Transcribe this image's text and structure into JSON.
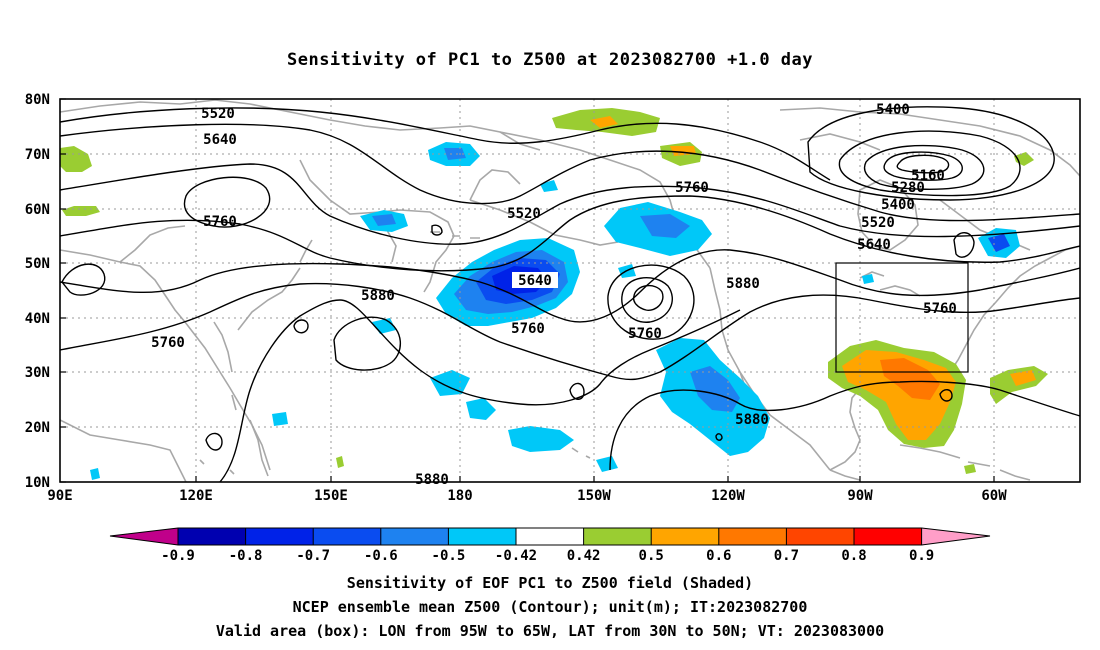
{
  "title": "Sensitivity of PC1 to Z500 at 2023082700 +1.0 day",
  "map": {
    "lat_labels": [
      "80N",
      "70N",
      "60N",
      "50N",
      "40N",
      "30N",
      "20N",
      "10N"
    ],
    "lon_labels": [
      "90E",
      "120E",
      "150E",
      "180",
      "150W",
      "120W",
      "90W",
      "60W"
    ],
    "contour_labels": [
      {
        "text": "5520"
      },
      {
        "text": "5640"
      },
      {
        "text": "5760"
      },
      {
        "text": "5520"
      },
      {
        "text": "5760"
      },
      {
        "text": "5880"
      },
      {
        "text": "5640"
      },
      {
        "text": "5760"
      },
      {
        "text": "5760"
      },
      {
        "text": "5760"
      },
      {
        "text": "5880"
      },
      {
        "text": "5880"
      },
      {
        "text": "5880"
      },
      {
        "text": "5400"
      },
      {
        "text": "5160"
      },
      {
        "text": "5280"
      },
      {
        "text": "5400"
      },
      {
        "text": "5520"
      },
      {
        "text": "5640"
      },
      {
        "text": "5760"
      }
    ],
    "valid_box": {
      "lon_from": "95W",
      "lon_to": "65W",
      "lat_from": "30N",
      "lat_to": "50N"
    }
  },
  "colorbar": {
    "colors": [
      "#c0008a",
      "#0000b0",
      "#0022e8",
      "#0a4cf0",
      "#1e82f0",
      "#00c8f8",
      "#ffffff",
      "#9acd32",
      "#ffa500",
      "#ff7800",
      "#ff4500",
      "#ff0000",
      "#ff9ec8"
    ],
    "labels": [
      "-0.9",
      "-0.8",
      "-0.7",
      "-0.6",
      "-0.5",
      "-0.42",
      "0.42",
      "0.5",
      "0.6",
      "0.7",
      "0.8",
      "0.9"
    ]
  },
  "footer": {
    "line1": "Sensitivity of EOF PC1 to Z500 field (Shaded)",
    "line2": "NCEP ensemble mean Z500 (Contour); unit(m); IT:2023082700",
    "line3": "Valid area (box): LON from 95W to 65W, LAT from 30N to 50N; VT: 2023083000"
  }
}
